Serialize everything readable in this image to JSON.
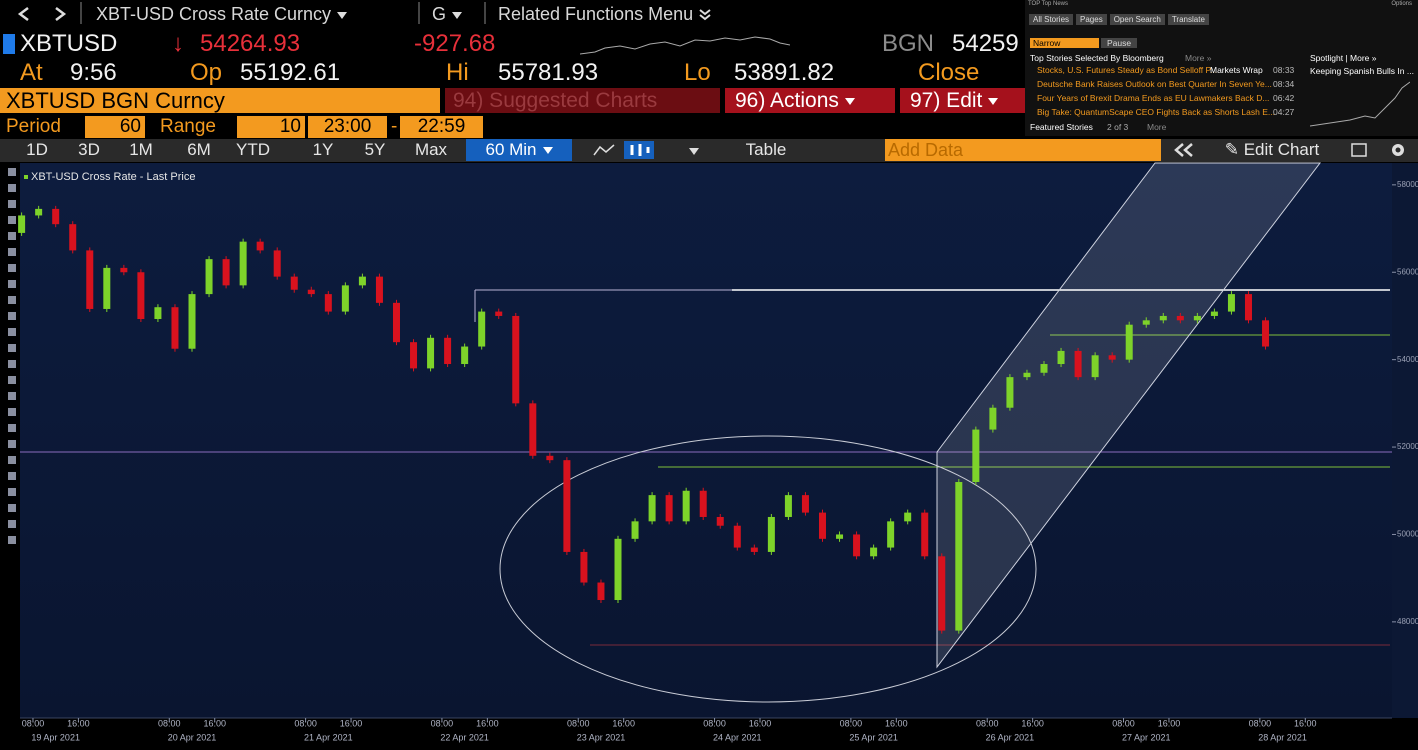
{
  "toolbar": {
    "security": "XBT-USD Cross Rate Curncy",
    "group": "G",
    "related": "Related Functions Menu"
  },
  "quote": {
    "ticker": "XBTUSD",
    "direction": "↓",
    "last": "54264.93",
    "change": "-927.68",
    "source": "BGN",
    "source_price": "54259",
    "time_label": "At",
    "time": "9:56",
    "open_label": "Op",
    "open": "55192.61",
    "high_label": "Hi",
    "high": "55781.93",
    "low_label": "Lo",
    "low": "53891.82",
    "close_label": "Close"
  },
  "function_bar": {
    "security": "XBTUSD BGN Curncy",
    "suggested": "94) Suggested Charts",
    "actions": "96) Actions",
    "edit": "97) Edit"
  },
  "period_bar": {
    "period_label": "Period",
    "period": "60",
    "range_label": "Range",
    "range_start": "10",
    "time_start": "23:00",
    "separator": "-",
    "time_end": "22:59"
  },
  "chart_toolbar": {
    "ranges": [
      "1D",
      "3D",
      "1M",
      "6M",
      "YTD",
      "1Y",
      "5Y",
      "Max"
    ],
    "frequency": "60 Min",
    "table": "Table",
    "add_data": "Add Data",
    "edit_chart": "Edit Chart"
  },
  "news": {
    "title": "TOP Top News",
    "options": "Options",
    "tabs": [
      "All Stories",
      "Pages",
      "Open Search",
      "Translate"
    ],
    "narrow": "Narrow",
    "pause": "Pause",
    "heading": "Top Stories Selected By Bloomberg",
    "more": "More »",
    "headlines": [
      {
        "text": "Stocks, U.S. Futures Steady as Bond Selloff P...",
        "tag": "Markets Wrap",
        "time": "08:33"
      },
      {
        "text": "Deutsche Bank Raises Outlook on Best Quarter In Seven Ye...",
        "time": "08:34"
      },
      {
        "text": "Four Years of Brexit Drama Ends as EU Lawmakers Back D...",
        "time": "06:42"
      },
      {
        "text": "Big Take: QuantumScape CEO Fights Back as Shorts Lash E...",
        "time": "04:27"
      }
    ],
    "featured": "Featured Stories",
    "page": "2 of 3",
    "featured_more": "More",
    "spotlight": "Spotlight | More »",
    "spotlight_story": "Keeping Spanish Bulls In ..."
  },
  "chart_data": {
    "type": "candlestick",
    "title": "XBT-USD Cross Rate - Last Price",
    "up_color": "#7ed32a",
    "down_color": "#d8121e",
    "x": [
      "2021-04-19 06:00",
      "2021-04-19 09:00",
      "2021-04-19 12:00",
      "2021-04-19 15:00",
      "2021-04-19 18:00",
      "2021-04-19 21:00",
      "2021-04-20 00:00",
      "2021-04-20 03:00",
      "2021-04-20 06:00",
      "2021-04-20 09:00",
      "2021-04-20 12:00",
      "2021-04-20 15:00",
      "2021-04-20 18:00",
      "2021-04-20 21:00",
      "2021-04-21 00:00",
      "2021-04-21 03:00",
      "2021-04-21 06:00",
      "2021-04-21 09:00",
      "2021-04-21 12:00",
      "2021-04-21 15:00",
      "2021-04-21 18:00",
      "2021-04-21 21:00",
      "2021-04-22 00:00",
      "2021-04-22 03:00",
      "2021-04-22 06:00",
      "2021-04-22 09:00",
      "2021-04-22 12:00",
      "2021-04-22 15:00",
      "2021-04-22 18:00",
      "2021-04-22 21:00",
      "2021-04-23 00:00",
      "2021-04-23 03:00",
      "2021-04-23 06:00",
      "2021-04-23 09:00",
      "2021-04-23 12:00",
      "2021-04-23 15:00",
      "2021-04-23 18:00",
      "2021-04-23 21:00",
      "2021-04-24 00:00",
      "2021-04-24 03:00",
      "2021-04-24 06:00",
      "2021-04-24 09:00",
      "2021-04-24 12:00",
      "2021-04-24 15:00",
      "2021-04-24 18:00",
      "2021-04-24 21:00",
      "2021-04-25 00:00",
      "2021-04-25 03:00",
      "2021-04-25 06:00",
      "2021-04-25 09:00",
      "2021-04-25 12:00",
      "2021-04-25 15:00",
      "2021-04-25 18:00",
      "2021-04-25 21:00",
      "2021-04-26 00:00",
      "2021-04-26 03:00",
      "2021-04-26 06:00",
      "2021-04-26 09:00",
      "2021-04-26 12:00",
      "2021-04-26 15:00",
      "2021-04-26 18:00",
      "2021-04-26 21:00",
      "2021-04-27 00:00",
      "2021-04-27 03:00",
      "2021-04-27 06:00",
      "2021-04-27 09:00",
      "2021-04-27 12:00",
      "2021-04-27 15:00",
      "2021-04-27 18:00",
      "2021-04-27 21:00",
      "2021-04-28 00:00",
      "2021-04-28 03:00",
      "2021-04-28 06:00",
      "2021-04-28 09:00"
    ],
    "open": [
      56900,
      57300,
      57450,
      57100,
      56500,
      55160,
      56100,
      56000,
      54930,
      55200,
      54250,
      55500,
      56300,
      55700,
      56700,
      56500,
      55900,
      55600,
      55500,
      55100,
      55700,
      55900,
      55300,
      54400,
      53800,
      54500,
      53900,
      54300,
      55100,
      55000,
      53000,
      51800,
      51700,
      49600,
      48900,
      48500,
      49900,
      50300,
      50900,
      50300,
      51000,
      50400,
      50200,
      49700,
      49600,
      50400,
      50900,
      50500,
      49900,
      50000,
      49500,
      49700,
      50300,
      50500,
      49500,
      47800,
      51200,
      52400,
      52900,
      53600,
      53700,
      53900,
      54200,
      53600,
      54100,
      54000,
      54800,
      54900,
      55000,
      54900,
      55000,
      55100,
      55500,
      54900
    ],
    "close": [
      57300,
      57450,
      57100,
      56500,
      55160,
      56100,
      56000,
      54930,
      55200,
      54250,
      55500,
      56300,
      55700,
      56700,
      56500,
      55900,
      55600,
      55500,
      55100,
      55700,
      55900,
      55300,
      54400,
      53800,
      54500,
      53900,
      54300,
      55100,
      55000,
      53000,
      51800,
      51700,
      49600,
      48900,
      48500,
      49900,
      50300,
      50900,
      50300,
      51000,
      50400,
      50200,
      49700,
      49600,
      50400,
      50900,
      50500,
      49900,
      50000,
      49500,
      49700,
      50300,
      50500,
      49500,
      47800,
      51200,
      52400,
      52900,
      53600,
      53700,
      53900,
      54200,
      53600,
      54100,
      54000,
      54800,
      54900,
      55000,
      54900,
      55000,
      55100,
      55500,
      54900,
      54300
    ],
    "xlim": [
      "2021-04-19 05:43",
      "2021-04-29 07:16"
    ],
    "xticks": [
      {
        "value": "2021-04-19 08:00",
        "label": "08:00"
      },
      {
        "value": "2021-04-19 16:00",
        "label": "16:00"
      },
      {
        "value": "2021-04-20 08:00",
        "label": "08:00"
      },
      {
        "value": "2021-04-20 16:00",
        "label": "16:00"
      },
      {
        "value": "2021-04-21 08:00",
        "label": "08:00"
      },
      {
        "value": "2021-04-21 16:00",
        "label": "16:00"
      },
      {
        "value": "2021-04-22 08:00",
        "label": "08:00"
      },
      {
        "value": "2021-04-22 16:00",
        "label": "16:00"
      },
      {
        "value": "2021-04-23 08:00",
        "label": "08:00"
      },
      {
        "value": "2021-04-23 16:00",
        "label": "16:00"
      },
      {
        "value": "2021-04-24 08:00",
        "label": "08:00"
      },
      {
        "value": "2021-04-24 16:00",
        "label": "16:00"
      },
      {
        "value": "2021-04-25 08:00",
        "label": "08:00"
      },
      {
        "value": "2021-04-25 16:00",
        "label": "16:00"
      },
      {
        "value": "2021-04-26 08:00",
        "label": "08:00"
      },
      {
        "value": "2021-04-26 16:00",
        "label": "16:00"
      },
      {
        "value": "2021-04-27 08:00",
        "label": "08:00"
      },
      {
        "value": "2021-04-27 16:00",
        "label": "16:00"
      },
      {
        "value": "2021-04-28 08:00",
        "label": "08:00"
      },
      {
        "value": "2021-04-28 16:00",
        "label": "16:00"
      }
    ],
    "dates": [
      {
        "value": "2021-04-19",
        "label": "19 Apr 2021"
      },
      {
        "value": "2021-04-20",
        "label": "20 Apr 2021"
      },
      {
        "value": "2021-04-21",
        "label": "21 Apr 2021"
      },
      {
        "value": "2021-04-22",
        "label": "22 Apr 2021"
      },
      {
        "value": "2021-04-23",
        "label": "23 Apr 2021"
      },
      {
        "value": "2021-04-24",
        "label": "24 Apr 2021"
      },
      {
        "value": "2021-04-25",
        "label": "25 Apr 2021"
      },
      {
        "value": "2021-04-26",
        "label": "26 Apr 2021"
      },
      {
        "value": "2021-04-27",
        "label": "27 Apr 2021"
      },
      {
        "value": "2021-04-28",
        "label": "28 Apr 2021"
      }
    ],
    "ylim": [
      45800,
      58500
    ],
    "yticks": [
      48000,
      50000,
      52000,
      54000,
      56000,
      58000
    ]
  }
}
